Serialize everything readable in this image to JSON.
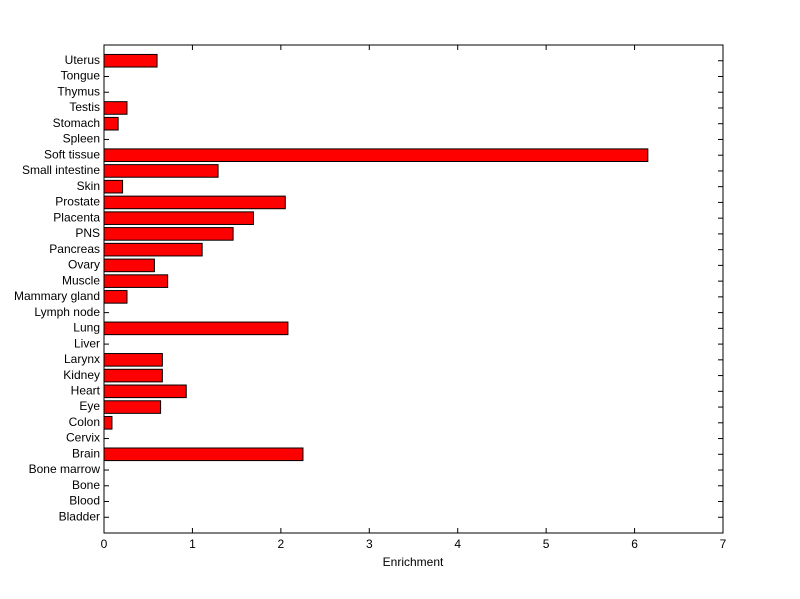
{
  "chart_data": {
    "type": "barh",
    "xlabel": "Enrichment",
    "categories": [
      "Uterus",
      "Tongue",
      "Thymus",
      "Testis",
      "Stomach",
      "Spleen",
      "Soft tissue",
      "Small intestine",
      "Skin",
      "Prostate",
      "Placenta",
      "PNS",
      "Pancreas",
      "Ovary",
      "Muscle",
      "Mammary gland",
      "Lymph node",
      "Lung",
      "Liver",
      "Larynx",
      "Kidney",
      "Heart",
      "Eye",
      "Colon",
      "Cervix",
      "Brain",
      "Bone marrow",
      "Bone",
      "Blood",
      "Bladder"
    ],
    "values": [
      0.6,
      0,
      0,
      0.26,
      0.16,
      0,
      6.15,
      1.29,
      0.21,
      2.05,
      1.69,
      1.46,
      1.11,
      0.57,
      0.72,
      0.26,
      0,
      2.08,
      0,
      0.66,
      0.66,
      0.93,
      0.64,
      0.09,
      0,
      2.25,
      0,
      0,
      0,
      0
    ],
    "color": "#ff0000",
    "xlim": [
      0,
      7
    ],
    "xticks": [
      0,
      1,
      2,
      3,
      4,
      5,
      6,
      7
    ],
    "grid": false
  }
}
